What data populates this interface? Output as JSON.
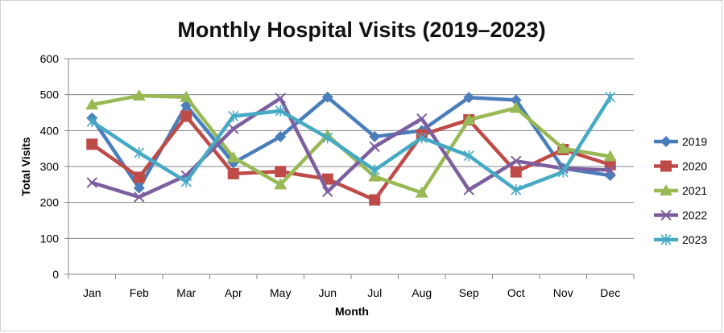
{
  "chart_data": {
    "type": "line",
    "title": "Monthly Hospital Visits (2019–2023)",
    "xlabel": "Month",
    "ylabel": "Total Visits",
    "ylim": [
      0,
      600
    ],
    "yticks": [
      0,
      100,
      200,
      300,
      400,
      500,
      600
    ],
    "grid": true,
    "legend": "right",
    "categories": [
      "Jan",
      "Feb",
      "Mar",
      "Apr",
      "May",
      "Jun",
      "Jul",
      "Aug",
      "Sep",
      "Oct",
      "Nov",
      "Dec"
    ],
    "series": [
      {
        "name": "2019",
        "color": "#4a7ebb",
        "marker": "diamond",
        "values": [
          435,
          240,
          470,
          310,
          383,
          493,
          383,
          400,
          492,
          485,
          295,
          275
        ]
      },
      {
        "name": "2020",
        "color": "#be4b48",
        "marker": "square",
        "values": [
          362,
          270,
          440,
          280,
          286,
          265,
          207,
          388,
          430,
          285,
          347,
          305
        ]
      },
      {
        "name": "2021",
        "color": "#98b954",
        "marker": "triangle",
        "values": [
          472,
          497,
          493,
          325,
          250,
          387,
          272,
          227,
          430,
          463,
          350,
          328
        ]
      },
      {
        "name": "2022",
        "color": "#7d5fa0",
        "marker": "x",
        "values": [
          255,
          215,
          275,
          405,
          490,
          230,
          355,
          433,
          235,
          315,
          295,
          290
        ]
      },
      {
        "name": "2023",
        "color": "#46aac5",
        "marker": "star",
        "values": [
          425,
          338,
          258,
          440,
          455,
          380,
          290,
          380,
          330,
          235,
          285,
          493
        ]
      }
    ]
  }
}
